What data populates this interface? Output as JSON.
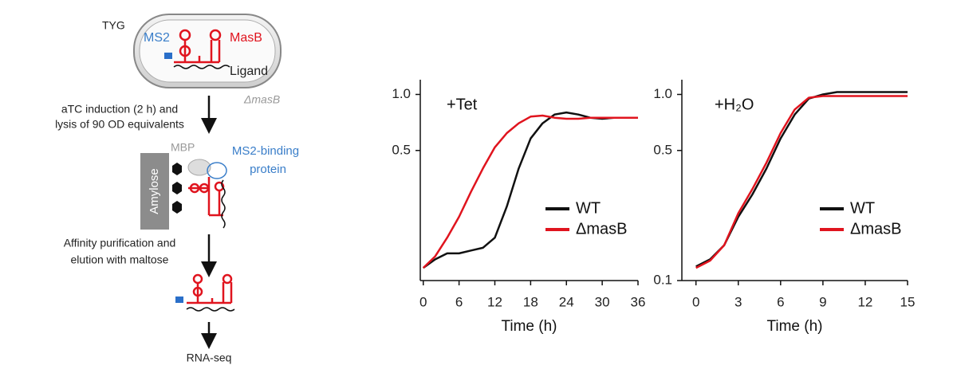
{
  "diagram": {
    "labels": [
      "TYG",
      "MS2",
      "MasB",
      "Ligand",
      "ΔmasB",
      "aTC induction (2 h) and",
      "lysis of 90 OD equivalents",
      "MBP",
      "MS2-binding",
      "protein",
      "Amylose",
      "Affinity purification and",
      "elution with maltose",
      "RNA-seq"
    ]
  },
  "chart_data": [
    {
      "type": "line",
      "annotation": "+Tet",
      "x_label": "Time (h)",
      "log_y": true,
      "x": [
        0,
        2,
        4,
        6,
        8,
        10,
        12,
        14,
        16,
        18,
        20,
        22,
        24,
        26,
        28,
        30,
        32,
        34,
        36
      ],
      "series": [
        {
          "name": "WT",
          "color": "#111111",
          "values": [
            0.117,
            0.13,
            0.14,
            0.14,
            0.145,
            0.15,
            0.17,
            0.25,
            0.4,
            0.58,
            0.7,
            0.78,
            0.8,
            0.78,
            0.75,
            0.74,
            0.75,
            0.75,
            0.75
          ]
        },
        {
          "name": "ΔmasB",
          "color": "#e0141e",
          "values": [
            0.117,
            0.135,
            0.17,
            0.22,
            0.3,
            0.4,
            0.52,
            0.62,
            0.7,
            0.76,
            0.77,
            0.75,
            0.74,
            0.74,
            0.75,
            0.75,
            0.75,
            0.75,
            0.75
          ]
        }
      ],
      "xlim": [
        -0.5,
        36
      ],
      "xticks": [
        0,
        6,
        12,
        18,
        24,
        30,
        36
      ],
      "ylim": [
        0.1,
        1.2
      ],
      "yticks": [
        {
          "value": 1,
          "label": "1.0"
        },
        0.5
      ]
    },
    {
      "type": "line",
      "annotation": "+H₂O",
      "x_label": "Time (h)",
      "log_y": true,
      "x": [
        0,
        1,
        2,
        3,
        4,
        5,
        6,
        7,
        8,
        9,
        10,
        12,
        15
      ],
      "series": [
        {
          "name": "WT",
          "color": "#111111",
          "values": [
            0.119,
            0.13,
            0.155,
            0.22,
            0.29,
            0.4,
            0.58,
            0.78,
            0.95,
            1.0,
            1.03,
            1.03,
            1.03
          ]
        },
        {
          "name": "ΔmasB",
          "color": "#e0141e",
          "values": [
            0.117,
            0.128,
            0.155,
            0.23,
            0.31,
            0.43,
            0.62,
            0.83,
            0.96,
            0.98,
            0.98,
            0.98,
            0.98
          ]
        }
      ],
      "xlim": [
        -1,
        15
      ],
      "xticks": [
        0,
        3,
        6,
        9,
        12,
        15
      ],
      "ylim": [
        0.1,
        1.2
      ],
      "yticks": [
        {
          "value": 1,
          "label": "1.0"
        },
        0.5,
        0.1
      ]
    }
  ]
}
